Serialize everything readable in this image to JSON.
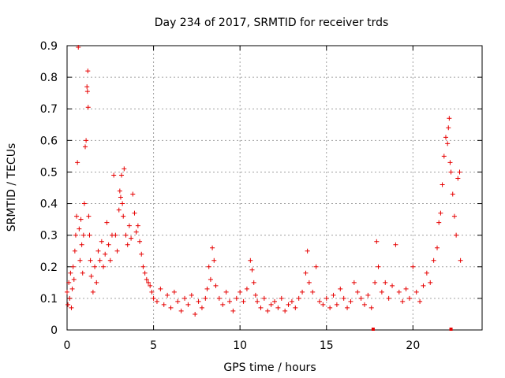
{
  "chart_data": {
    "type": "scatter",
    "title": "Day 234 of 2017, SRMTID for receiver trds",
    "xlabel": "GPS time / hours",
    "ylabel": "SRMTID / TECUs",
    "xlim": [
      0,
      24
    ],
    "ylim": [
      0,
      0.9
    ],
    "x_ticks": [
      0,
      5,
      10,
      15,
      20
    ],
    "y_ticks": [
      0,
      0.1,
      0.2,
      0.3,
      0.4,
      0.5,
      0.6,
      0.7,
      0.8,
      0.9
    ],
    "x_tick_labels": [
      "0",
      "5",
      "10",
      "15",
      "20"
    ],
    "y_tick_labels": [
      "0",
      "0.1",
      "0.2",
      "0.3",
      "0.4",
      "0.5",
      "0.6",
      "0.7",
      "0.8",
      "0.9"
    ],
    "grid": true,
    "marker": "+",
    "series": [
      {
        "name": "SRMTID",
        "color": "#e60000",
        "points": [
          [
            0.0,
            0.12
          ],
          [
            0.05,
            0.08
          ],
          [
            0.1,
            0.15
          ],
          [
            0.15,
            0.1
          ],
          [
            0.2,
            0.18
          ],
          [
            0.25,
            0.07
          ],
          [
            0.3,
            0.13
          ],
          [
            0.35,
            0.2
          ],
          [
            0.4,
            0.16
          ],
          [
            0.45,
            0.25
          ],
          [
            0.5,
            0.3
          ],
          [
            0.55,
            0.36
          ],
          [
            0.6,
            0.53
          ],
          [
            0.65,
            0.895
          ],
          [
            0.7,
            0.32
          ],
          [
            0.75,
            0.22
          ],
          [
            0.8,
            0.35
          ],
          [
            0.85,
            0.27
          ],
          [
            0.9,
            0.18
          ],
          [
            0.95,
            0.3
          ],
          [
            1.0,
            0.4
          ],
          [
            1.05,
            0.58
          ],
          [
            1.1,
            0.6
          ],
          [
            1.15,
            0.77
          ],
          [
            1.18,
            0.755
          ],
          [
            1.2,
            0.82
          ],
          [
            1.22,
            0.705
          ],
          [
            1.25,
            0.36
          ],
          [
            1.3,
            0.3
          ],
          [
            1.35,
            0.22
          ],
          [
            1.4,
            0.17
          ],
          [
            1.5,
            0.12
          ],
          [
            1.6,
            0.2
          ],
          [
            1.7,
            0.15
          ],
          [
            1.8,
            0.25
          ],
          [
            1.9,
            0.22
          ],
          [
            2.0,
            0.28
          ],
          [
            2.1,
            0.2
          ],
          [
            2.2,
            0.24
          ],
          [
            2.3,
            0.34
          ],
          [
            2.4,
            0.27
          ],
          [
            2.5,
            0.22
          ],
          [
            2.6,
            0.3
          ],
          [
            2.7,
            0.49
          ],
          [
            2.8,
            0.3
          ],
          [
            2.9,
            0.25
          ],
          [
            3.0,
            0.38
          ],
          [
            3.05,
            0.44
          ],
          [
            3.1,
            0.42
          ],
          [
            3.15,
            0.49
          ],
          [
            3.2,
            0.4
          ],
          [
            3.25,
            0.36
          ],
          [
            3.3,
            0.51
          ],
          [
            3.4,
            0.3
          ],
          [
            3.5,
            0.27
          ],
          [
            3.6,
            0.33
          ],
          [
            3.7,
            0.29
          ],
          [
            3.8,
            0.43
          ],
          [
            3.9,
            0.37
          ],
          [
            4.0,
            0.31
          ],
          [
            4.1,
            0.33
          ],
          [
            4.2,
            0.28
          ],
          [
            4.3,
            0.24
          ],
          [
            4.4,
            0.2
          ],
          [
            4.5,
            0.18
          ],
          [
            4.6,
            0.16
          ],
          [
            4.7,
            0.15
          ],
          [
            4.8,
            0.14
          ],
          [
            4.9,
            0.12
          ],
          [
            5.0,
            0.1
          ],
          [
            5.2,
            0.09
          ],
          [
            5.4,
            0.13
          ],
          [
            5.6,
            0.08
          ],
          [
            5.8,
            0.11
          ],
          [
            6.0,
            0.07
          ],
          [
            6.2,
            0.12
          ],
          [
            6.4,
            0.09
          ],
          [
            6.6,
            0.06
          ],
          [
            6.8,
            0.1
          ],
          [
            7.0,
            0.08
          ],
          [
            7.2,
            0.11
          ],
          [
            7.4,
            0.05
          ],
          [
            7.6,
            0.09
          ],
          [
            7.8,
            0.07
          ],
          [
            8.0,
            0.1
          ],
          [
            8.1,
            0.13
          ],
          [
            8.2,
            0.2
          ],
          [
            8.3,
            0.16
          ],
          [
            8.4,
            0.26
          ],
          [
            8.5,
            0.22
          ],
          [
            8.6,
            0.14
          ],
          [
            8.8,
            0.1
          ],
          [
            9.0,
            0.08
          ],
          [
            9.2,
            0.12
          ],
          [
            9.4,
            0.09
          ],
          [
            9.6,
            0.06
          ],
          [
            9.8,
            0.1
          ],
          [
            10.0,
            0.12
          ],
          [
            10.2,
            0.09
          ],
          [
            10.4,
            0.13
          ],
          [
            10.6,
            0.22
          ],
          [
            10.7,
            0.19
          ],
          [
            10.8,
            0.15
          ],
          [
            10.9,
            0.11
          ],
          [
            11.0,
            0.09
          ],
          [
            11.2,
            0.07
          ],
          [
            11.4,
            0.1
          ],
          [
            11.6,
            0.06
          ],
          [
            11.8,
            0.08
          ],
          [
            12.0,
            0.09
          ],
          [
            12.2,
            0.07
          ],
          [
            12.4,
            0.1
          ],
          [
            12.6,
            0.06
          ],
          [
            12.8,
            0.08
          ],
          [
            13.0,
            0.09
          ],
          [
            13.2,
            0.07
          ],
          [
            13.4,
            0.1
          ],
          [
            13.6,
            0.12
          ],
          [
            13.8,
            0.18
          ],
          [
            13.9,
            0.25
          ],
          [
            14.0,
            0.15
          ],
          [
            14.2,
            0.12
          ],
          [
            14.4,
            0.2
          ],
          [
            14.6,
            0.09
          ],
          [
            14.8,
            0.08
          ],
          [
            15.0,
            0.1
          ],
          [
            15.2,
            0.07
          ],
          [
            15.4,
            0.11
          ],
          [
            15.6,
            0.08
          ],
          [
            15.8,
            0.13
          ],
          [
            16.0,
            0.1
          ],
          [
            16.2,
            0.07
          ],
          [
            16.4,
            0.09
          ],
          [
            16.6,
            0.15
          ],
          [
            16.8,
            0.12
          ],
          [
            17.0,
            0.1
          ],
          [
            17.2,
            0.08
          ],
          [
            17.4,
            0.11
          ],
          [
            17.6,
            0.07
          ],
          [
            17.8,
            0.15
          ],
          [
            17.9,
            0.28
          ],
          [
            18.0,
            0.2
          ],
          [
            18.2,
            0.12
          ],
          [
            18.4,
            0.15
          ],
          [
            18.6,
            0.1
          ],
          [
            18.8,
            0.14
          ],
          [
            19.0,
            0.27
          ],
          [
            19.2,
            0.12
          ],
          [
            19.4,
            0.09
          ],
          [
            19.6,
            0.13
          ],
          [
            19.8,
            0.1
          ],
          [
            20.0,
            0.2
          ],
          [
            20.2,
            0.12
          ],
          [
            20.4,
            0.09
          ],
          [
            20.6,
            0.14
          ],
          [
            20.8,
            0.18
          ],
          [
            21.0,
            0.15
          ],
          [
            21.2,
            0.22
          ],
          [
            21.4,
            0.26
          ],
          [
            21.5,
            0.34
          ],
          [
            21.6,
            0.37
          ],
          [
            21.7,
            0.46
          ],
          [
            21.8,
            0.55
          ],
          [
            21.9,
            0.61
          ],
          [
            22.0,
            0.59
          ],
          [
            22.05,
            0.64
          ],
          [
            22.1,
            0.67
          ],
          [
            22.15,
            0.53
          ],
          [
            22.2,
            0.5
          ],
          [
            22.3,
            0.43
          ],
          [
            22.4,
            0.36
          ],
          [
            22.5,
            0.3
          ],
          [
            22.6,
            0.48
          ],
          [
            22.7,
            0.5
          ],
          [
            22.75,
            0.22
          ]
        ]
      }
    ],
    "gap_markers_x": [
      17.7,
      22.2
    ]
  }
}
